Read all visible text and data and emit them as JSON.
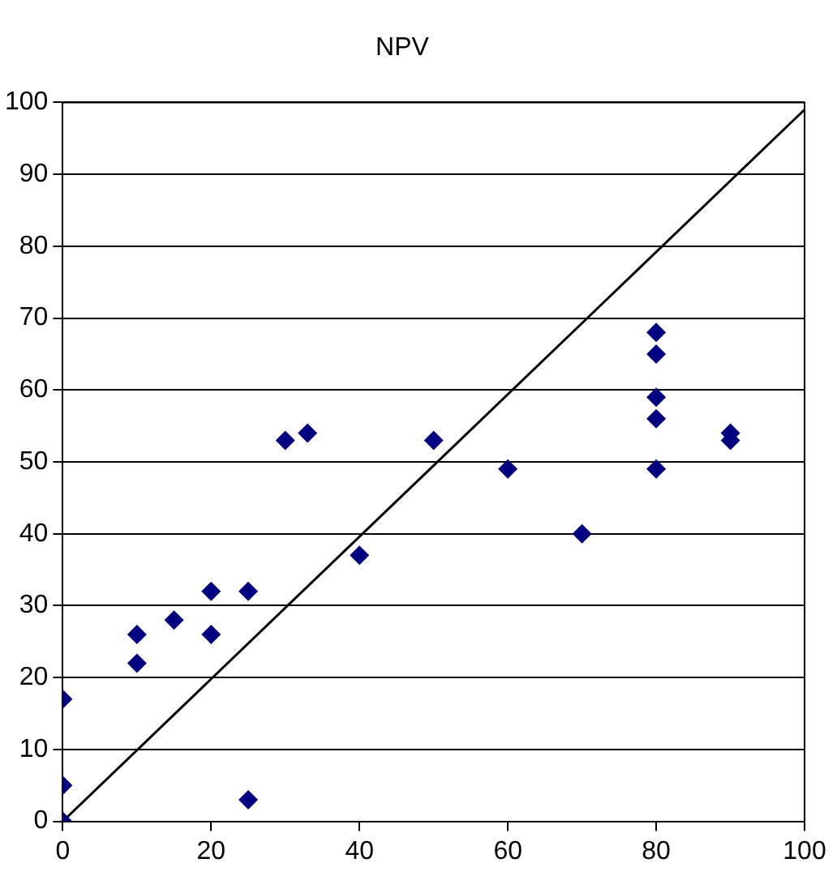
{
  "chart_data": {
    "type": "scatter",
    "title": "NPV",
    "xlim": [
      0,
      100
    ],
    "ylim": [
      0,
      100
    ],
    "xticks": [
      0,
      20,
      40,
      60,
      80,
      100
    ],
    "yticks": [
      0,
      10,
      20,
      30,
      40,
      50,
      60,
      70,
      80,
      90,
      100
    ],
    "grid": "y",
    "legend": false,
    "marker": "diamond",
    "series": [
      {
        "color": "#000080",
        "x": [
          0,
          0,
          0,
          10,
          10,
          15,
          20,
          20,
          25,
          25,
          30,
          33,
          40,
          50,
          60,
          70,
          80,
          80,
          80,
          80,
          80,
          90,
          90
        ],
        "values": [
          0,
          5,
          17,
          26,
          22,
          28,
          32,
          26,
          32,
          3,
          53,
          54,
          37,
          53,
          49,
          40,
          68,
          65,
          59,
          56,
          49,
          54,
          53
        ]
      },
      {
        "type": "line",
        "color": "#000000",
        "x": [
          0,
          100
        ],
        "values": [
          0,
          99
        ],
        "marker": "none",
        "line_style": "solid"
      }
    ]
  }
}
